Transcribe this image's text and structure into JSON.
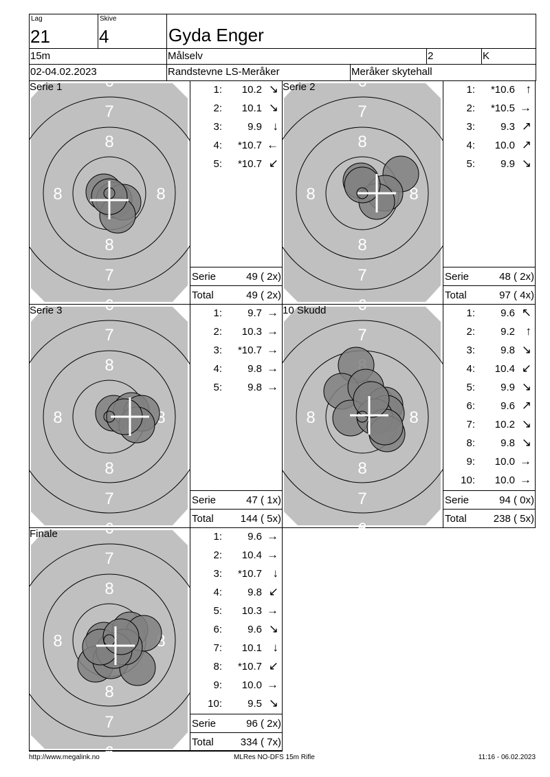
{
  "header": {
    "lag_label": "Lag",
    "lag": "21",
    "skive_label": "Skive",
    "skive": "4",
    "name": "Gyda Enger",
    "distance": "15m",
    "club": "Målselv",
    "klasse_num": "2",
    "klasse": "K",
    "date": "02-04.02.2023",
    "event": "Randstevne LS-Meråker",
    "venue": "Meråker skytehall"
  },
  "target": {
    "ring_labels": {
      "top_outer": "6",
      "top7": "7",
      "top8": "8",
      "left8": "8",
      "right8": "8",
      "bottom8": "8",
      "bottom7": "7",
      "bottom_outer": "6"
    },
    "colors": {
      "face": "#c0c0c0",
      "shot": "#808080",
      "cross": "#ffffff"
    }
  },
  "panels": [
    {
      "title": "Serie 1",
      "shots": [
        {
          "n": "1:",
          "v": "10.2",
          "arrow": "↘"
        },
        {
          "n": "2:",
          "v": "10.1",
          "arrow": "↘"
        },
        {
          "n": "3:",
          "v": "9.9",
          "arrow": "↓"
        },
        {
          "n": "4:",
          "v": "*10.7",
          "arrow": "←"
        },
        {
          "n": "5:",
          "v": "*10.7",
          "arrow": "↙"
        }
      ],
      "serie_label": "Serie",
      "serie": "49 ( 2x)",
      "total_label": "Total",
      "total": "49 ( 2x)"
    },
    {
      "title": "Serie 2",
      "shots": [
        {
          "n": "1:",
          "v": "*10.6",
          "arrow": "↑"
        },
        {
          "n": "2:",
          "v": "*10.5",
          "arrow": "→"
        },
        {
          "n": "3:",
          "v": "9.3",
          "arrow": "↗"
        },
        {
          "n": "4:",
          "v": "10.0",
          "arrow": "↗"
        },
        {
          "n": "5:",
          "v": "9.9",
          "arrow": "↘"
        }
      ],
      "serie_label": "Serie",
      "serie": "48 ( 2x)",
      "total_label": "Total",
      "total": "97 ( 4x)"
    },
    {
      "title": "Serie 3",
      "shots": [
        {
          "n": "1:",
          "v": "9.7",
          "arrow": "→"
        },
        {
          "n": "2:",
          "v": "10.3",
          "arrow": "→"
        },
        {
          "n": "3:",
          "v": "*10.7",
          "arrow": "→"
        },
        {
          "n": "4:",
          "v": "9.8",
          "arrow": "→"
        },
        {
          "n": "5:",
          "v": "9.8",
          "arrow": "→"
        }
      ],
      "serie_label": "Serie",
      "serie": "47 ( 1x)",
      "total_label": "Total",
      "total": "144 ( 5x)"
    },
    {
      "title": "10 Skudd",
      "shots": [
        {
          "n": "1:",
          "v": "9.6",
          "arrow": "↖"
        },
        {
          "n": "2:",
          "v": "9.2",
          "arrow": "↑"
        },
        {
          "n": "3:",
          "v": "9.8",
          "arrow": "↘"
        },
        {
          "n": "4:",
          "v": "10.4",
          "arrow": "↙"
        },
        {
          "n": "5:",
          "v": "9.9",
          "arrow": "↘"
        },
        {
          "n": "6:",
          "v": "9.6",
          "arrow": "↗"
        },
        {
          "n": "7:",
          "v": "10.2",
          "arrow": "↘"
        },
        {
          "n": "8:",
          "v": "9.8",
          "arrow": "↘"
        },
        {
          "n": "9:",
          "v": "10.0",
          "arrow": "→"
        },
        {
          "n": "10:",
          "v": "10.0",
          "arrow": "→"
        }
      ],
      "serie_label": "Serie",
      "serie": "94 ( 0x)",
      "total_label": "Total",
      "total": "238 ( 5x)"
    },
    {
      "title": "Finale",
      "shots": [
        {
          "n": "1:",
          "v": "9.6",
          "arrow": "→"
        },
        {
          "n": "2:",
          "v": "10.4",
          "arrow": "→"
        },
        {
          "n": "3:",
          "v": "*10.7",
          "arrow": "↓"
        },
        {
          "n": "4:",
          "v": "9.8",
          "arrow": "↙"
        },
        {
          "n": "5:",
          "v": "10.3",
          "arrow": "→"
        },
        {
          "n": "6:",
          "v": "9.6",
          "arrow": "↘"
        },
        {
          "n": "7:",
          "v": "10.1",
          "arrow": "↓"
        },
        {
          "n": "8:",
          "v": "*10.7",
          "arrow": "↙"
        },
        {
          "n": "9:",
          "v": "10.0",
          "arrow": "→"
        },
        {
          "n": "10:",
          "v": "9.5",
          "arrow": "↘"
        }
      ],
      "serie_label": "Serie",
      "serie": "96 ( 2x)",
      "total_label": "Total",
      "total": "334 ( 7x)"
    }
  ],
  "footer": {
    "url": "http://www.megalink.no",
    "program": "MLRes NO-DFS 15m Rifle",
    "timestamp": "11:16 - 06.02.2023"
  }
}
